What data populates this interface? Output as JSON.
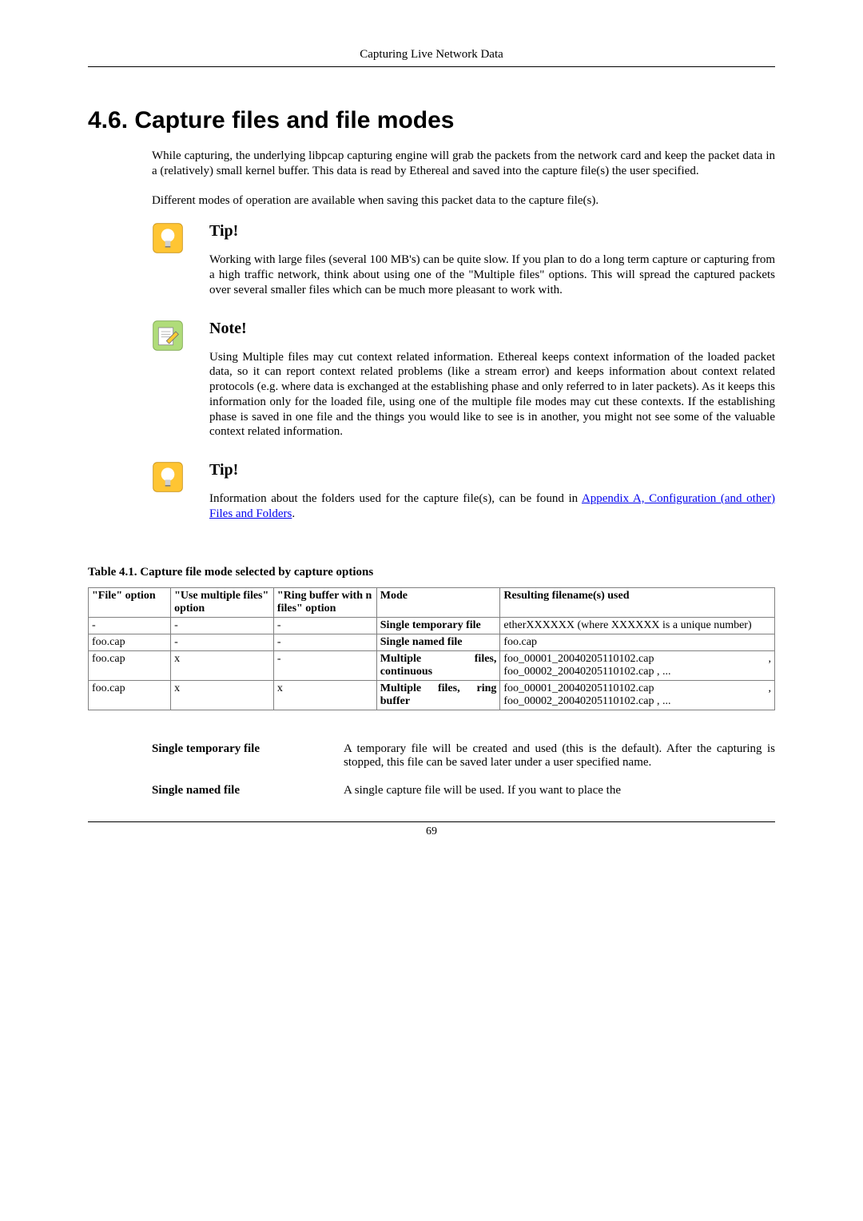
{
  "header": {
    "running_title": "Capturing Live Network Data"
  },
  "section": {
    "number": "4.6.",
    "title": "Capture files and file modes",
    "intro_para1": "While capturing, the underlying libpcap capturing engine will grab the packets from the network card and keep the packet data in a (relatively) small kernel buffer. This data is read by Ethereal and saved into the capture file(s) the user specified.",
    "intro_para2": "Different modes of operation are available when saving this packet data to the capture file(s)."
  },
  "admonitions": [
    {
      "type": "tip",
      "title": "Tip!",
      "body": "Working with large files (several 100 MB's) can be quite slow. If you plan to do a long term capture or capturing from a high traffic network, think about using one of the \"Multiple files\" options. This will spread the captured packets over several smaller files which can be much more pleasant to work with."
    },
    {
      "type": "note",
      "title": "Note!",
      "body": "Using Multiple files may cut context related information. Ethereal keeps context information of the loaded packet data, so it can report context related problems (like a stream error) and keeps information about context related protocols (e.g. where data is exchanged at the establishing phase and only referred to in later packets). As it keeps this information only for the loaded file, using one of the multiple file modes may cut these contexts. If the establishing phase is saved in one file and the things you would like to see is in another, you might not see some of the valuable context related information."
    },
    {
      "type": "tip",
      "title": "Tip!",
      "body_prefix": "Information about the folders used for the capture file(s), can be found in ",
      "link_text": "Appendix A, Configuration (and other) Files and Folders",
      "body_suffix": "."
    }
  ],
  "table": {
    "caption": "Table 4.1. Capture file mode selected by capture options",
    "col_widths": [
      "12%",
      "15%",
      "15%",
      "18%",
      "40%"
    ],
    "headers": [
      "\"File\" option",
      "\"Use multiple files\" option",
      "\"Ring buffer with n files\" option",
      "Mode",
      "Resulting filename(s) used"
    ],
    "rows": [
      [
        "-",
        "-",
        "-",
        "Single temporary file",
        "etherXXXXXX (where XXXXXX is a unique number)"
      ],
      [
        "foo.cap",
        "-",
        "-",
        "Single named file",
        "foo.cap"
      ],
      [
        "foo.cap",
        "x",
        "-",
        "Multiple files, continuous",
        "foo_00001_20040205110102.cap , foo_00002_20040205110102.cap , ..."
      ],
      [
        "foo.cap",
        "x",
        "x",
        "Multiple files, ring buffer",
        "foo_00001_20040205110102.cap , foo_00002_20040205110102.cap , ..."
      ]
    ]
  },
  "definitions": [
    {
      "term": "Single temporary file",
      "desc": "A temporary file will be created and used (this is the default). After the capturing is stopped, this file can be saved later under a user specified name."
    },
    {
      "term": "Single named file",
      "desc": "A single capture file will be used. If you want to place the"
    }
  ],
  "footer": {
    "page_number": "69"
  },
  "icon_colors": {
    "tip_bg": "#ffc533",
    "tip_bulb": "#ffffff",
    "note_bg": "#b0dc7a",
    "note_pencil": "#6e6e6e"
  }
}
